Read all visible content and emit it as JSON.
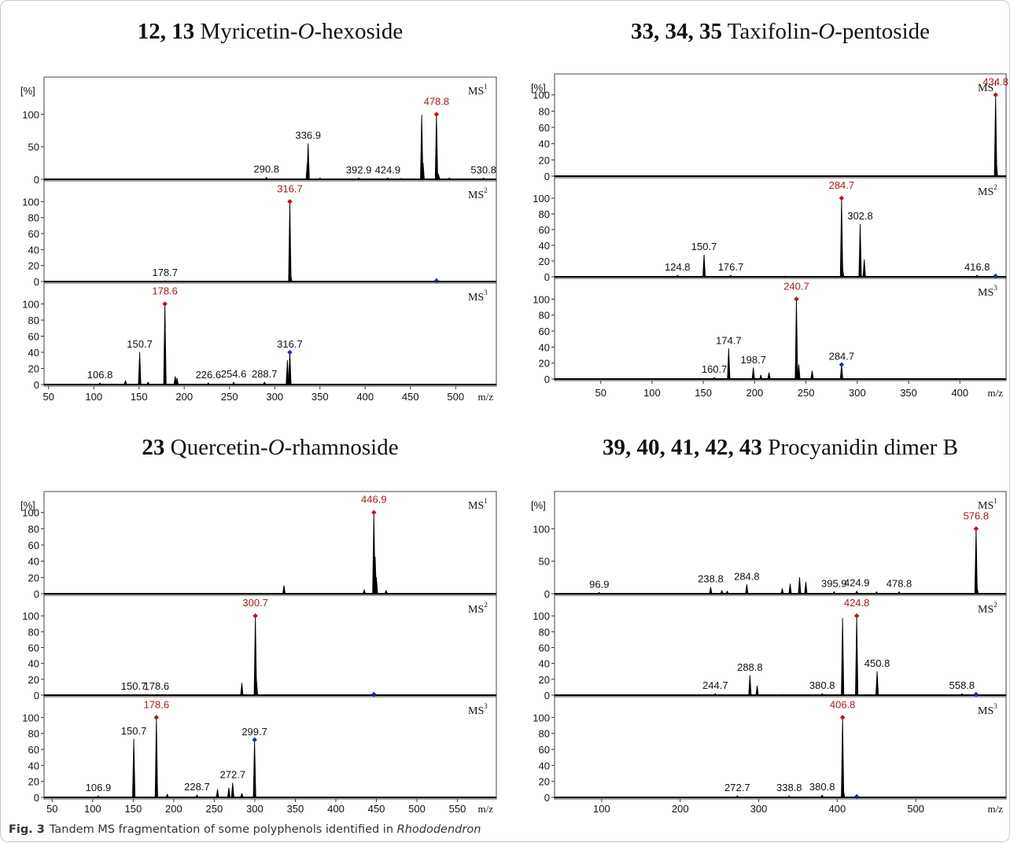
{
  "figure": {
    "caption_label": "Fig. 3",
    "caption_text": "Tandem MS fragmentation of some polyphenols identified in ",
    "caption_species": "Rhododendron"
  },
  "colors": {
    "precursor_label": "#b01818",
    "precursor_marker": "#c01010",
    "parent_marker": "#1030b0",
    "trace": "#000000"
  },
  "chart_data": [
    {
      "type": "line",
      "title": {
        "bold": "12, 13",
        "text": " Myricetin-",
        "italic": "O",
        "rest": "-hexoside"
      },
      "x_ticks": [
        50,
        100,
        150,
        200,
        250,
        300,
        350,
        400,
        450,
        500
      ],
      "xlabel": "m/z",
      "xlim": [
        45,
        545
      ],
      "panels": [
        {
          "ms": "MS",
          "order": "1",
          "ylabel": "[%]",
          "ylim": [
            0,
            150
          ],
          "yticks": [
            0,
            50,
            100
          ],
          "peaks": [
            [
              290.8,
              3
            ],
            [
              336.9,
              55
            ],
            [
              336.0,
              25
            ],
            [
              350,
              2
            ],
            [
              392.9,
              2
            ],
            [
              424.9,
              2
            ],
            [
              440,
              1.5
            ],
            [
              462.5,
              99
            ],
            [
              464,
              25
            ],
            [
              478.8,
              100
            ],
            [
              481,
              8
            ],
            [
              493,
              2
            ],
            [
              530.8,
              2
            ]
          ],
          "labels": [
            {
              "x": 290.8,
              "text": "290.8"
            },
            {
              "x": 336.9,
              "text": "336.9"
            },
            {
              "x": 392.9,
              "text": "392.9"
            },
            {
              "x": 424.9,
              "text": "424.9"
            },
            {
              "x": 478.8,
              "text": "478.8",
              "precursor": true
            },
            {
              "x": 530.8,
              "text": "530.8"
            }
          ],
          "markers": [
            {
              "x": 478.8,
              "kind": "precursor"
            }
          ]
        },
        {
          "ms": "MS",
          "order": "2",
          "ylim": [
            0,
            120
          ],
          "yticks": [
            0,
            20,
            40,
            60,
            80,
            100
          ],
          "peaks": [
            [
              178.7,
              1
            ],
            [
              316.7,
              100
            ],
            [
              317.7,
              8
            ]
          ],
          "labels": [
            {
              "x": 178.7,
              "text": "178.7"
            },
            {
              "x": 316.7,
              "text": "316.7",
              "precursor": true
            }
          ],
          "markers": [
            {
              "x": 316.7,
              "kind": "precursor"
            },
            {
              "x": 478.8,
              "kind": "parent"
            }
          ]
        },
        {
          "ms": "MS",
          "order": "3",
          "ylim": [
            0,
            120
          ],
          "yticks": [
            0,
            20,
            40,
            60,
            80,
            100
          ],
          "peaks": [
            [
              106.8,
              2
            ],
            [
              135,
              5
            ],
            [
              150.7,
              40
            ],
            [
              160,
              3
            ],
            [
              178.6,
              100
            ],
            [
              190,
              10
            ],
            [
              192,
              8
            ],
            [
              226.6,
              2
            ],
            [
              254.6,
              3
            ],
            [
              288.7,
              3
            ],
            [
              314,
              30
            ],
            [
              316.7,
              40
            ]
          ],
          "labels": [
            {
              "x": 106.8,
              "text": "106.8"
            },
            {
              "x": 150.7,
              "text": "150.7"
            },
            {
              "x": 178.6,
              "text": "178.6",
              "precursor": true
            },
            {
              "x": 226.6,
              "text": "226.6"
            },
            {
              "x": 254.6,
              "text": "254.6"
            },
            {
              "x": 288.7,
              "text": "288.7"
            },
            {
              "x": 316.7,
              "text": "316.7"
            }
          ],
          "markers": [
            {
              "x": 178.6,
              "kind": "precursor"
            },
            {
              "x": 316.7,
              "kind": "parent"
            }
          ]
        }
      ]
    },
    {
      "type": "line",
      "title": {
        "bold": "33, 34, 35",
        "text": " Taxifolin-",
        "italic": "O",
        "rest": "-pentoside"
      },
      "x_ticks": [
        50,
        100,
        150,
        200,
        250,
        300,
        350,
        400
      ],
      "xlabel": "m/z",
      "xlim": [
        5,
        445
      ],
      "panels": [
        {
          "ms": "MS",
          "order": "1",
          "ylabel": "[%]",
          "ylim": [
            0,
            120
          ],
          "yticks": [
            0,
            20,
            40,
            60,
            80,
            100
          ],
          "peaks": [
            [
              434.8,
              100
            ],
            [
              435.5,
              20
            ]
          ],
          "labels": [
            {
              "x": 434.8,
              "text": "434.8",
              "precursor": true
            }
          ],
          "markers": [
            {
              "x": 434.8,
              "kind": "precursor"
            }
          ]
        },
        {
          "ms": "MS",
          "order": "2",
          "ylim": [
            0,
            120
          ],
          "yticks": [
            0,
            20,
            40,
            60,
            80,
            100
          ],
          "peaks": [
            [
              124.8,
              2
            ],
            [
              150.7,
              28
            ],
            [
              176.7,
              2
            ],
            [
              230,
              1
            ],
            [
              284.7,
              100
            ],
            [
              285.7,
              10
            ],
            [
              302.8,
              67
            ],
            [
              306.8,
              22
            ],
            [
              416.8,
              2
            ]
          ],
          "labels": [
            {
              "x": 124.8,
              "text": "124.8"
            },
            {
              "x": 150.7,
              "text": "150.7"
            },
            {
              "x": 176.7,
              "text": "176.7"
            },
            {
              "x": 284.7,
              "text": "284.7",
              "precursor": true
            },
            {
              "x": 302.8,
              "text": "302.8"
            },
            {
              "x": 416.8,
              "text": "416.8"
            }
          ],
          "markers": [
            {
              "x": 284.7,
              "kind": "precursor"
            },
            {
              "x": 434.8,
              "kind": "parent"
            }
          ]
        },
        {
          "ms": "MS",
          "order": "3",
          "ylim": [
            0,
            120
          ],
          "yticks": [
            0,
            20,
            40,
            60,
            80,
            100
          ],
          "peaks": [
            [
              160.7,
              2
            ],
            [
              174.7,
              38
            ],
            [
              198.7,
              14
            ],
            [
              206,
              5
            ],
            [
              214,
              8
            ],
            [
              240.7,
              100
            ],
            [
              243,
              18
            ],
            [
              256,
              10
            ],
            [
              284.7,
              18
            ]
          ],
          "labels": [
            {
              "x": 160.7,
              "text": "160.7"
            },
            {
              "x": 174.7,
              "text": "174.7"
            },
            {
              "x": 198.7,
              "text": "198.7"
            },
            {
              "x": 240.7,
              "text": "240.7",
              "precursor": true
            },
            {
              "x": 284.7,
              "text": "284.7"
            }
          ],
          "markers": [
            {
              "x": 240.7,
              "kind": "precursor"
            },
            {
              "x": 284.7,
              "kind": "parent"
            }
          ]
        }
      ]
    },
    {
      "type": "line",
      "title": {
        "bold": "23",
        "text": " Quercetin-",
        "italic": "O",
        "rest": "-rhamnoside"
      },
      "x_ticks": [
        50,
        100,
        150,
        200,
        250,
        300,
        350,
        400,
        450,
        500,
        550
      ],
      "xlabel": "m/z",
      "xlim": [
        40,
        598
      ],
      "panels": [
        {
          "ms": "MS",
          "order": "1",
          "ylabel": "[%]",
          "ylim": [
            0,
            120
          ],
          "yticks": [
            0,
            20,
            40,
            60,
            80,
            100
          ],
          "peaks": [
            [
              336,
              10
            ],
            [
              435,
              5
            ],
            [
              446.9,
              100
            ],
            [
              448.5,
              45
            ],
            [
              450,
              20
            ],
            [
              462,
              4
            ]
          ],
          "labels": [
            {
              "x": 446.9,
              "text": "446.9",
              "precursor": true
            }
          ],
          "markers": [
            {
              "x": 446.9,
              "kind": "precursor"
            }
          ]
        },
        {
          "ms": "MS",
          "order": "2",
          "ylim": [
            0,
            120
          ],
          "yticks": [
            0,
            20,
            40,
            60,
            80,
            100
          ],
          "peaks": [
            [
              150.7,
              1
            ],
            [
              178.6,
              1
            ],
            [
              284,
              15
            ],
            [
              300.7,
              100
            ],
            [
              302,
              20
            ]
          ],
          "labels": [
            {
              "x": 150.7,
              "text": "150.7"
            },
            {
              "x": 178.6,
              "text": "178.6"
            },
            {
              "x": 300.7,
              "text": "300.7",
              "precursor": true
            }
          ],
          "markers": [
            {
              "x": 300.7,
              "kind": "precursor"
            },
            {
              "x": 446.9,
              "kind": "parent"
            }
          ]
        },
        {
          "ms": "MS",
          "order": "3",
          "ylim": [
            0,
            120
          ],
          "yticks": [
            0,
            20,
            40,
            60,
            80,
            100
          ],
          "peaks": [
            [
              106.9,
              2
            ],
            [
              150.7,
              73
            ],
            [
              178.6,
              100
            ],
            [
              192,
              4
            ],
            [
              228.7,
              3
            ],
            [
              254,
              10
            ],
            [
              268,
              12
            ],
            [
              272.7,
              18
            ],
            [
              284,
              5
            ],
            [
              299.7,
              72
            ]
          ],
          "labels": [
            {
              "x": 106.9,
              "text": "106.9"
            },
            {
              "x": 150.7,
              "text": "150.7"
            },
            {
              "x": 178.6,
              "text": "178.6",
              "precursor": true
            },
            {
              "x": 228.7,
              "text": "228.7"
            },
            {
              "x": 272.7,
              "text": "272.7"
            },
            {
              "x": 299.7,
              "text": "299.7"
            }
          ],
          "markers": [
            {
              "x": 178.6,
              "kind": "precursor"
            },
            {
              "x": 299.7,
              "kind": "parent"
            }
          ]
        }
      ]
    },
    {
      "type": "line",
      "title": {
        "bold": "39, 40, 41, 42, 43",
        "text": " Procyanidin dimer B",
        "italic": "",
        "rest": ""
      },
      "x_ticks": [
        100,
        200,
        300,
        400,
        500
      ],
      "xlabel": "m/z",
      "xlim": [
        40,
        615
      ],
      "panels": [
        {
          "ms": "MS",
          "order": "1",
          "ylabel": "[%]",
          "ylim": [
            0,
            150
          ],
          "yticks": [
            0,
            50,
            100
          ],
          "peaks": [
            [
              96.9,
              2
            ],
            [
              238.8,
              10
            ],
            [
              253,
              5
            ],
            [
              260,
              4
            ],
            [
              284.8,
              14
            ],
            [
              330,
              8
            ],
            [
              340,
              15
            ],
            [
              352,
              25
            ],
            [
              360,
              18
            ],
            [
              395.9,
              3
            ],
            [
              424.9,
              4
            ],
            [
              450,
              3
            ],
            [
              478.8,
              3
            ],
            [
              576.8,
              100
            ],
            [
              578,
              10
            ]
          ],
          "labels": [
            {
              "x": 96.9,
              "text": "96.9"
            },
            {
              "x": 238.8,
              "text": "238.8"
            },
            {
              "x": 284.8,
              "text": "284.8"
            },
            {
              "x": 395.9,
              "text": "395.9"
            },
            {
              "x": 424.9,
              "text": "424.9"
            },
            {
              "x": 478.8,
              "text": "478.8"
            },
            {
              "x": 576.8,
              "text": "576.8",
              "precursor": true
            }
          ],
          "markers": [
            {
              "x": 576.8,
              "kind": "precursor"
            }
          ]
        },
        {
          "ms": "MS",
          "order": "2",
          "ylim": [
            0,
            120
          ],
          "yticks": [
            0,
            20,
            40,
            60,
            80,
            100
          ],
          "peaks": [
            [
              244.7,
              2
            ],
            [
              288.8,
              25
            ],
            [
              298,
              12
            ],
            [
              330,
              1
            ],
            [
              380.8,
              2
            ],
            [
              406.8,
              97
            ],
            [
              424.8,
              100
            ],
            [
              450.8,
              30
            ],
            [
              558.8,
              2
            ]
          ],
          "labels": [
            {
              "x": 244.7,
              "text": "244.7"
            },
            {
              "x": 288.8,
              "text": "288.8"
            },
            {
              "x": 380.8,
              "text": "380.8"
            },
            {
              "x": 424.8,
              "text": "424.8",
              "precursor": true
            },
            {
              "x": 450.8,
              "text": "450.8"
            },
            {
              "x": 558.8,
              "text": "558.8"
            }
          ],
          "markers": [
            {
              "x": 424.8,
              "kind": "precursor"
            },
            {
              "x": 576.8,
              "kind": "parent"
            }
          ]
        },
        {
          "ms": "MS",
          "order": "3",
          "ylim": [
            0,
            120
          ],
          "yticks": [
            0,
            20,
            40,
            60,
            80,
            100
          ],
          "peaks": [
            [
              272.7,
              2
            ],
            [
              338.8,
              2
            ],
            [
              380.8,
              3
            ],
            [
              406.8,
              100
            ],
            [
              408,
              8
            ]
          ],
          "labels": [
            {
              "x": 272.7,
              "text": "272.7"
            },
            {
              "x": 338.8,
              "text": "338.8"
            },
            {
              "x": 380.8,
              "text": "380.8"
            },
            {
              "x": 406.8,
              "text": "406.8",
              "precursor": true
            }
          ],
          "markers": [
            {
              "x": 406.8,
              "kind": "precursor"
            },
            {
              "x": 424.8,
              "kind": "parent"
            }
          ]
        }
      ]
    }
  ]
}
